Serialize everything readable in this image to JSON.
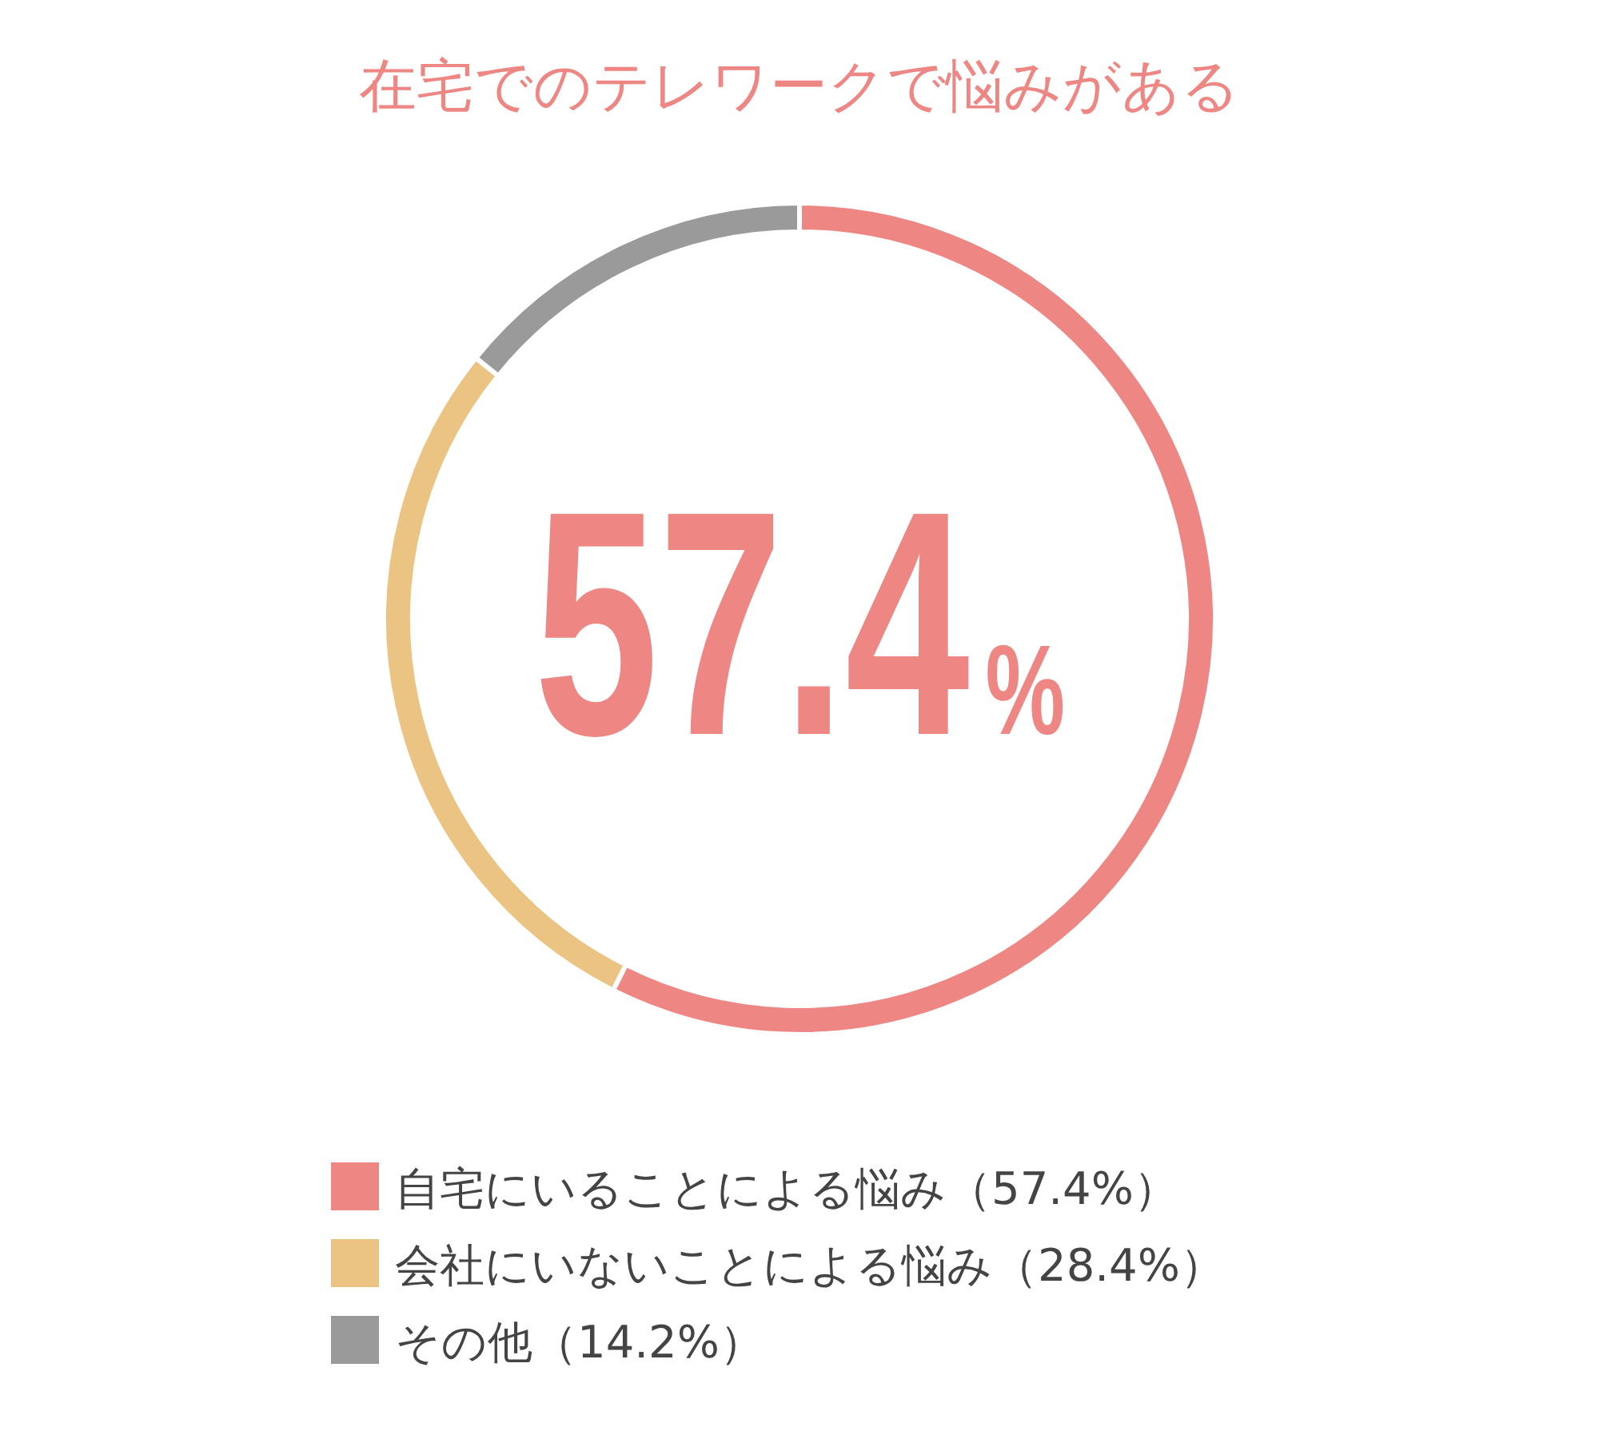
{
  "chart_data": {
    "type": "donut",
    "title": "在宅でのテレワークで悩みがある",
    "categories": [
      "自宅にいることによる悩み（57.4%）",
      "会社にいないことによる悩み（28.4%）",
      "その他（14.2%）"
    ],
    "values": [
      57.4,
      28.4,
      14.2
    ],
    "colors": [
      "#ee8683",
      "#ebc484",
      "#9a9a9a"
    ],
    "annotations": [
      "57.4%"
    ],
    "legend": "bottom"
  }
}
